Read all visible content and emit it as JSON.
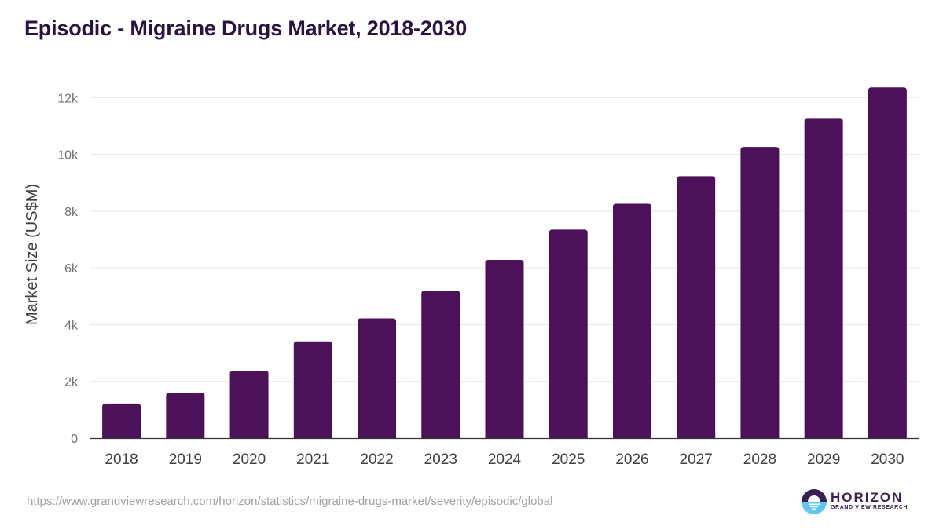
{
  "title": "Episodic - Migraine Drugs Market, 2018-2030",
  "source_url": "https://www.grandviewresearch.com/horizon/statistics/migraine-drugs-market/severity/episodic/global",
  "logo": {
    "name": "HORIZON",
    "subtitle": "GRAND VIEW RESEARCH",
    "colors": {
      "dark": "#3a1f55",
      "light": "#5ec8f0"
    }
  },
  "colors": {
    "bar": "#4b1259",
    "grid": "#e6e6e6",
    "axis": "#333333",
    "title": "#2a1340"
  },
  "chart_data": {
    "type": "bar",
    "title": "Episodic - Migraine Drugs Market, 2018-2030",
    "xlabel": "",
    "ylabel": "Market Size (US$M)",
    "categories": [
      "2018",
      "2019",
      "2020",
      "2021",
      "2022",
      "2023",
      "2024",
      "2025",
      "2026",
      "2027",
      "2028",
      "2029",
      "2030"
    ],
    "values": [
      1220,
      1600,
      2380,
      3410,
      4220,
      5200,
      6280,
      7350,
      8260,
      9230,
      10260,
      11280,
      12360
    ],
    "ylim": [
      0,
      12000
    ],
    "yticks": [
      0,
      2000,
      4000,
      6000,
      8000,
      10000,
      12000
    ],
    "ytick_labels": [
      "0",
      "2k",
      "4k",
      "6k",
      "8k",
      "10k",
      "12k"
    ],
    "grid": true,
    "legend": "none"
  }
}
